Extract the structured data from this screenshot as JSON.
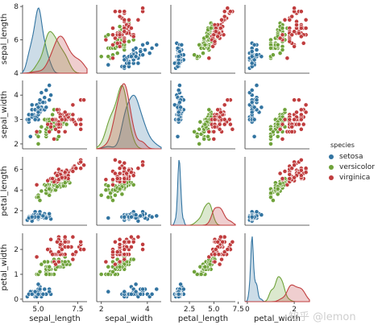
{
  "chart_data": {
    "type": "pairplot",
    "variables": [
      "sepal_length",
      "sepal_width",
      "petal_length",
      "petal_width"
    ],
    "axes": {
      "sepal_length": {
        "range": [
          4,
          8.1
        ],
        "ticks": [
          5.0,
          7.5
        ],
        "tick_labels": [
          "5.0",
          "7.5"
        ],
        "row_ticks": [
          4,
          6,
          8
        ],
        "row_tick_labels": [
          "4",
          "6",
          "8"
        ]
      },
      "sepal_width": {
        "range": [
          1.8,
          4.6
        ],
        "ticks": [
          2,
          4
        ],
        "tick_labels": [
          "2",
          "4"
        ],
        "row_ticks": [
          2,
          3,
          4
        ],
        "row_tick_labels": [
          "2",
          "3",
          "4"
        ]
      },
      "petal_length": {
        "range": [
          0.6,
          7.2
        ],
        "ticks": [
          2.5,
          5.0,
          7.5
        ],
        "tick_labels": [
          "2.5",
          "5.0",
          "7.5"
        ],
        "row_ticks": [
          2,
          4,
          6
        ],
        "row_tick_labels": [
          "2",
          "4",
          "6"
        ]
      },
      "petal_width": {
        "range": [
          -0.1,
          2.65
        ],
        "ticks": [
          0,
          2
        ],
        "tick_labels": [
          "0",
          "2"
        ],
        "row_ticks": [
          0,
          1,
          2
        ],
        "row_tick_labels": [
          "0",
          "1",
          "2"
        ]
      }
    },
    "legend": {
      "title": "species",
      "position": "right"
    },
    "series": [
      {
        "name": "setosa",
        "color": "#3274a1",
        "sepal_length": [
          5.1,
          4.9,
          4.7,
          4.6,
          5.0,
          5.4,
          4.6,
          5.0,
          4.4,
          4.9,
          5.4,
          4.8,
          4.8,
          4.3,
          5.8,
          5.7,
          5.4,
          5.1,
          5.7,
          5.1,
          5.4,
          5.1,
          4.6,
          5.1,
          4.8,
          5.0,
          5.0,
          5.2,
          5.2,
          4.7,
          4.8,
          5.4,
          5.2,
          5.5,
          4.9,
          5.0,
          5.5,
          4.9,
          4.4,
          5.1,
          5.0,
          4.5,
          4.4,
          5.0,
          5.1,
          4.8,
          5.1,
          4.6,
          5.3,
          5.0
        ],
        "sepal_width": [
          3.5,
          3.0,
          3.2,
          3.1,
          3.6,
          3.9,
          3.4,
          3.4,
          2.9,
          3.1,
          3.7,
          3.4,
          3.0,
          3.0,
          4.0,
          4.4,
          3.9,
          3.5,
          3.8,
          3.8,
          3.4,
          3.7,
          3.6,
          3.3,
          3.4,
          3.0,
          3.4,
          3.5,
          3.4,
          3.2,
          3.1,
          3.4,
          4.1,
          4.2,
          3.1,
          3.2,
          3.5,
          3.6,
          3.0,
          3.4,
          3.5,
          2.3,
          3.2,
          3.5,
          3.8,
          3.0,
          3.8,
          3.2,
          3.7,
          3.3
        ],
        "petal_length": [
          1.4,
          1.4,
          1.3,
          1.5,
          1.4,
          1.7,
          1.4,
          1.5,
          1.4,
          1.5,
          1.5,
          1.6,
          1.4,
          1.1,
          1.2,
          1.5,
          1.3,
          1.4,
          1.7,
          1.5,
          1.7,
          1.5,
          1.0,
          1.7,
          1.9,
          1.6,
          1.6,
          1.5,
          1.4,
          1.6,
          1.6,
          1.5,
          1.5,
          1.4,
          1.5,
          1.2,
          1.3,
          1.4,
          1.3,
          1.5,
          1.3,
          1.3,
          1.3,
          1.6,
          1.9,
          1.4,
          1.6,
          1.4,
          1.5,
          1.4
        ],
        "petal_width": [
          0.2,
          0.2,
          0.2,
          0.2,
          0.2,
          0.4,
          0.3,
          0.2,
          0.2,
          0.1,
          0.2,
          0.2,
          0.1,
          0.1,
          0.2,
          0.4,
          0.4,
          0.3,
          0.3,
          0.3,
          0.2,
          0.4,
          0.2,
          0.5,
          0.2,
          0.2,
          0.4,
          0.2,
          0.2,
          0.2,
          0.2,
          0.4,
          0.1,
          0.2,
          0.2,
          0.2,
          0.2,
          0.1,
          0.2,
          0.2,
          0.3,
          0.3,
          0.2,
          0.6,
          0.4,
          0.3,
          0.2,
          0.2,
          0.2,
          0.2
        ]
      },
      {
        "name": "versicolor",
        "color": "#6fa23a",
        "sepal_length": [
          7.0,
          6.4,
          6.9,
          5.5,
          6.5,
          5.7,
          6.3,
          4.9,
          6.6,
          5.2,
          5.0,
          5.9,
          6.0,
          6.1,
          5.6,
          6.7,
          5.6,
          5.8,
          6.2,
          5.6,
          5.9,
          6.1,
          6.3,
          6.1,
          6.4,
          6.6,
          6.8,
          6.7,
          6.0,
          5.7,
          5.5,
          5.5,
          5.8,
          6.0,
          5.4,
          6.0,
          6.7,
          6.3,
          5.6,
          5.5,
          5.5,
          6.1,
          5.8,
          5.0,
          5.6,
          5.7,
          5.7,
          6.2,
          5.1,
          5.7
        ],
        "sepal_width": [
          3.2,
          3.2,
          3.1,
          2.3,
          2.8,
          2.8,
          3.3,
          2.4,
          2.9,
          2.7,
          2.0,
          3.0,
          2.2,
          2.9,
          2.9,
          3.1,
          3.0,
          2.7,
          2.2,
          2.5,
          3.2,
          2.8,
          2.5,
          2.8,
          2.9,
          3.0,
          2.8,
          3.0,
          2.9,
          2.6,
          2.4,
          2.4,
          2.7,
          2.7,
          3.0,
          3.4,
          3.1,
          2.3,
          3.0,
          2.5,
          2.6,
          3.0,
          2.6,
          2.3,
          2.7,
          3.0,
          2.9,
          2.9,
          2.5,
          2.8
        ],
        "petal_length": [
          4.7,
          4.5,
          4.9,
          4.0,
          4.6,
          4.5,
          4.7,
          3.3,
          4.6,
          3.9,
          3.5,
          4.2,
          4.0,
          4.7,
          3.6,
          4.4,
          4.5,
          4.1,
          4.5,
          3.9,
          4.8,
          4.0,
          4.9,
          4.7,
          4.3,
          4.4,
          4.8,
          5.0,
          4.5,
          3.5,
          3.8,
          3.7,
          3.9,
          5.1,
          4.5,
          4.5,
          4.7,
          4.4,
          4.1,
          4.0,
          4.4,
          4.6,
          4.0,
          3.3,
          4.2,
          4.2,
          4.2,
          4.3,
          3.0,
          4.1
        ],
        "petal_width": [
          1.4,
          1.5,
          1.5,
          1.3,
          1.5,
          1.3,
          1.6,
          1.0,
          1.3,
          1.4,
          1.0,
          1.5,
          1.0,
          1.4,
          1.3,
          1.4,
          1.5,
          1.0,
          1.5,
          1.1,
          1.8,
          1.3,
          1.5,
          1.2,
          1.3,
          1.4,
          1.4,
          1.7,
          1.5,
          1.0,
          1.1,
          1.0,
          1.2,
          1.6,
          1.5,
          1.6,
          1.5,
          1.3,
          1.3,
          1.3,
          1.2,
          1.4,
          1.2,
          1.0,
          1.3,
          1.2,
          1.3,
          1.3,
          1.1,
          1.3
        ]
      },
      {
        "name": "virginica",
        "color": "#c03d3e",
        "sepal_length": [
          6.3,
          5.8,
          7.1,
          6.3,
          6.5,
          7.6,
          4.9,
          7.3,
          6.7,
          7.2,
          6.5,
          6.4,
          6.8,
          5.7,
          5.8,
          6.4,
          6.5,
          7.7,
          7.7,
          6.0,
          6.9,
          5.6,
          7.7,
          6.3,
          6.7,
          7.2,
          6.2,
          6.1,
          6.4,
          7.2,
          7.4,
          7.9,
          6.4,
          6.3,
          6.1,
          7.7,
          6.3,
          6.4,
          6.0,
          6.9,
          6.7,
          6.9,
          5.8,
          6.8,
          6.7,
          6.7,
          6.3,
          6.5,
          6.2,
          5.9
        ],
        "sepal_width": [
          3.3,
          2.7,
          3.0,
          2.9,
          3.0,
          3.0,
          2.5,
          2.9,
          2.5,
          3.6,
          3.2,
          2.7,
          3.0,
          2.5,
          2.8,
          3.2,
          3.0,
          3.8,
          2.6,
          2.2,
          3.2,
          2.8,
          2.8,
          2.7,
          3.3,
          3.2,
          2.8,
          3.0,
          2.8,
          3.0,
          2.8,
          3.8,
          2.8,
          2.8,
          2.6,
          3.0,
          3.4,
          3.1,
          3.0,
          3.1,
          3.1,
          3.1,
          2.7,
          3.2,
          3.3,
          3.0,
          2.5,
          3.0,
          3.4,
          3.0
        ],
        "petal_length": [
          6.0,
          5.1,
          5.9,
          5.6,
          5.8,
          6.6,
          4.5,
          6.3,
          5.8,
          6.1,
          5.1,
          5.3,
          5.5,
          5.0,
          5.1,
          5.3,
          5.5,
          6.7,
          6.9,
          5.0,
          5.7,
          4.9,
          6.7,
          4.9,
          5.7,
          6.0,
          4.8,
          4.9,
          5.6,
          5.8,
          6.1,
          6.4,
          5.6,
          5.1,
          5.6,
          6.1,
          5.6,
          5.5,
          4.8,
          5.4,
          5.6,
          5.1,
          5.1,
          5.9,
          5.7,
          5.2,
          5.0,
          5.2,
          5.4,
          5.1
        ],
        "petal_width": [
          2.5,
          1.9,
          2.1,
          1.8,
          2.2,
          2.1,
          1.7,
          1.8,
          1.8,
          2.5,
          2.0,
          1.9,
          2.1,
          2.0,
          2.4,
          2.3,
          1.8,
          2.2,
          2.3,
          1.5,
          2.3,
          2.0,
          2.0,
          1.8,
          2.1,
          1.8,
          1.8,
          1.8,
          2.1,
          1.6,
          1.9,
          2.0,
          2.2,
          1.5,
          1.4,
          2.3,
          2.4,
          1.8,
          1.8,
          2.1,
          2.4,
          2.3,
          1.9,
          2.3,
          2.5,
          2.3,
          1.9,
          2.0,
          2.3,
          1.8
        ]
      }
    ]
  },
  "watermark": "知乎 @lemon"
}
